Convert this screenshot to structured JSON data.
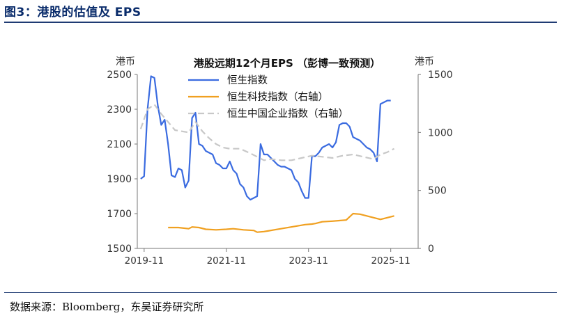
{
  "figure": {
    "title": "图3：港股的估值及 EPS",
    "source": "数据来源：Bloomberg，东吴证券研究所"
  },
  "chart_data": {
    "type": "line",
    "title": "港股远期12个月EPS （彭博一致预测）",
    "left_unit": "港币",
    "right_unit": "港币",
    "ylim_left": [
      1500,
      2500
    ],
    "ylim_right": [
      0,
      1500
    ],
    "yticks_left": [
      "2500",
      "2300",
      "2100",
      "1900",
      "1700",
      "1500"
    ],
    "yticks_right": [
      "1500",
      "1000",
      "500",
      "0"
    ],
    "xticks": [
      "2019-11",
      "2021-11",
      "2023-11",
      "2025-11"
    ],
    "x_range": [
      "2019-09",
      "2026-07"
    ],
    "legend_position": "top-center",
    "series": [
      {
        "name": "恒生指数",
        "axis": "left",
        "color": "#3a6be0",
        "style": "solid",
        "points": [
          [
            "2019-10",
            1900
          ],
          [
            "2019-11",
            1915
          ],
          [
            "2019-12",
            2300
          ],
          [
            "2020-01",
            2490
          ],
          [
            "2020-02",
            2480
          ],
          [
            "2020-03",
            2320
          ],
          [
            "2020-04",
            2210
          ],
          [
            "2020-05",
            2240
          ],
          [
            "2020-06",
            2100
          ],
          [
            "2020-07",
            1920
          ],
          [
            "2020-08",
            1910
          ],
          [
            "2020-09",
            1960
          ],
          [
            "2020-10",
            1950
          ],
          [
            "2020-11",
            1850
          ],
          [
            "2020-12",
            1890
          ],
          [
            "2021-01",
            2250
          ],
          [
            "2021-02",
            2280
          ],
          [
            "2021-03",
            2100
          ],
          [
            "2021-04",
            2090
          ],
          [
            "2021-05",
            2060
          ],
          [
            "2021-06",
            2050
          ],
          [
            "2021-07",
            2040
          ],
          [
            "2021-08",
            1990
          ],
          [
            "2021-09",
            1980
          ],
          [
            "2021-10",
            1960
          ],
          [
            "2021-11",
            1960
          ],
          [
            "2021-12",
            2000
          ],
          [
            "2022-01",
            1950
          ],
          [
            "2022-02",
            1930
          ],
          [
            "2022-03",
            1870
          ],
          [
            "2022-04",
            1850
          ],
          [
            "2022-05",
            1800
          ],
          [
            "2022-06",
            1780
          ],
          [
            "2022-07",
            1790
          ],
          [
            "2022-08",
            1800
          ],
          [
            "2022-09",
            2100
          ],
          [
            "2022-10",
            2040
          ],
          [
            "2022-11",
            2040
          ],
          [
            "2022-12",
            2020
          ],
          [
            "2023-01",
            2000
          ],
          [
            "2023-02",
            1980
          ],
          [
            "2023-03",
            1970
          ],
          [
            "2023-04",
            1970
          ],
          [
            "2023-05",
            1960
          ],
          [
            "2023-06",
            1950
          ],
          [
            "2023-07",
            1900
          ],
          [
            "2023-08",
            1880
          ],
          [
            "2023-09",
            1830
          ],
          [
            "2023-10",
            1790
          ],
          [
            "2023-11",
            1790
          ],
          [
            "2023-12",
            2030
          ],
          [
            "2024-01",
            2030
          ],
          [
            "2024-02",
            2050
          ],
          [
            "2024-03",
            2080
          ],
          [
            "2024-04",
            2090
          ],
          [
            "2024-05",
            2100
          ],
          [
            "2024-06",
            2080
          ],
          [
            "2024-07",
            2110
          ],
          [
            "2024-08",
            2210
          ],
          [
            "2024-09",
            2220
          ],
          [
            "2024-10",
            2220
          ],
          [
            "2024-11",
            2200
          ],
          [
            "2024-12",
            2140
          ],
          [
            "2025-01",
            2130
          ],
          [
            "2025-02",
            2120
          ],
          [
            "2025-03",
            2100
          ],
          [
            "2025-04",
            2080
          ],
          [
            "2025-05",
            2070
          ],
          [
            "2025-06",
            2050
          ],
          [
            "2025-07",
            2000
          ],
          [
            "2025-08",
            2330
          ],
          [
            "2025-09",
            2340
          ],
          [
            "2025-10",
            2350
          ],
          [
            "2025-11",
            2350
          ]
        ]
      },
      {
        "name": "恒生科技指数（右轴）",
        "axis": "right",
        "color": "#f0a020",
        "style": "solid",
        "points": [
          [
            "2020-06",
            180
          ],
          [
            "2020-09",
            180
          ],
          [
            "2020-12",
            170
          ],
          [
            "2021-01",
            185
          ],
          [
            "2021-03",
            180
          ],
          [
            "2021-05",
            165
          ],
          [
            "2021-08",
            160
          ],
          [
            "2021-11",
            165
          ],
          [
            "2022-01",
            170
          ],
          [
            "2022-04",
            160
          ],
          [
            "2022-07",
            155
          ],
          [
            "2022-08",
            140
          ],
          [
            "2022-10",
            145
          ],
          [
            "2022-11",
            150
          ],
          [
            "2023-01",
            160
          ],
          [
            "2023-04",
            175
          ],
          [
            "2023-07",
            190
          ],
          [
            "2023-10",
            205
          ],
          [
            "2023-12",
            210
          ],
          [
            "2024-01",
            215
          ],
          [
            "2024-03",
            230
          ],
          [
            "2024-06",
            235
          ],
          [
            "2024-08",
            240
          ],
          [
            "2024-10",
            245
          ],
          [
            "2024-12",
            300
          ],
          [
            "2025-02",
            295
          ],
          [
            "2025-04",
            280
          ],
          [
            "2025-06",
            265
          ],
          [
            "2025-08",
            250
          ],
          [
            "2025-10",
            265
          ],
          [
            "2025-12",
            280
          ]
        ]
      },
      {
        "name": "恒生中国企业指数（右轴）",
        "axis": "right",
        "color": "#c8c8c8",
        "style": "dashed",
        "points": [
          [
            "2019-10",
            1030
          ],
          [
            "2019-12",
            1200
          ],
          [
            "2020-02",
            1240
          ],
          [
            "2020-04",
            1160
          ],
          [
            "2020-06",
            1090
          ],
          [
            "2020-08",
            1020
          ],
          [
            "2020-10",
            1010
          ],
          [
            "2020-12",
            1000
          ],
          [
            "2021-02",
            1090
          ],
          [
            "2021-04",
            1010
          ],
          [
            "2021-06",
            950
          ],
          [
            "2021-08",
            900
          ],
          [
            "2021-10",
            870
          ],
          [
            "2021-12",
            860
          ],
          [
            "2022-03",
            860
          ],
          [
            "2022-06",
            820
          ],
          [
            "2022-08",
            790
          ],
          [
            "2022-10",
            760
          ],
          [
            "2022-12",
            770
          ],
          [
            "2023-03",
            760
          ],
          [
            "2023-06",
            760
          ],
          [
            "2023-09",
            780
          ],
          [
            "2023-12",
            800
          ],
          [
            "2024-03",
            790
          ],
          [
            "2024-06",
            780
          ],
          [
            "2024-09",
            800
          ],
          [
            "2024-12",
            810
          ],
          [
            "2025-03",
            790
          ],
          [
            "2025-06",
            770
          ],
          [
            "2025-08",
            810
          ],
          [
            "2025-10",
            830
          ],
          [
            "2025-12",
            860
          ]
        ]
      }
    ]
  }
}
